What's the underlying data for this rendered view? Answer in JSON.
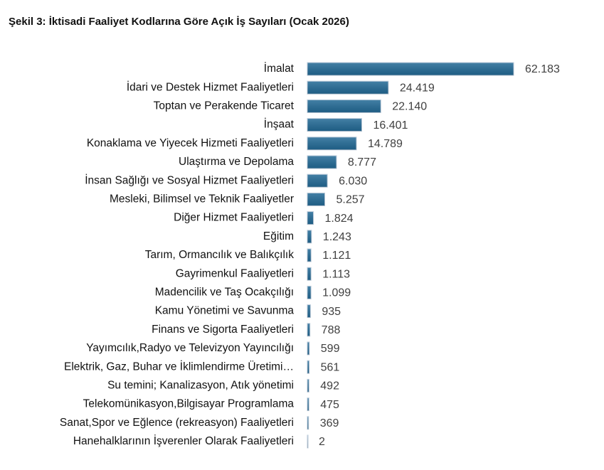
{
  "chart_data": {
    "type": "hbar",
    "title": "Şekil 3: İktisadi Faaliyet Kodlarına Göre Açık İş Sayıları (Ocak 2026)",
    "categories": [
      "İmalat",
      "İdari ve Destek Hizmet Faaliyetleri",
      "Toptan ve Perakende Ticaret",
      "İnşaat",
      "Konaklama ve Yiyecek Hizmeti Faaliyetleri",
      "Ulaştırma ve Depolama",
      "İnsan Sağlığı ve Sosyal Hizmet Faaliyetleri",
      "Mesleki, Bilimsel ve Teknik Faaliyetler",
      "Diğer Hizmet Faaliyetleri",
      "Eğitim",
      "Tarım, Ormancılık ve Balıkçılık",
      "Gayrimenkul Faaliyetleri",
      "Madencilik ve Taş Ocakçılığı",
      "Kamu Yönetimi ve Savunma",
      "Finans ve Sigorta Faaliyetleri",
      "Yayımcılık,Radyo ve Televizyon Yayıncılığı",
      "Elektrik, Gaz, Buhar ve İklimlendirme Üretimi…",
      "Su temini; Kanalizasyon, Atık yönetimi",
      "Telekomünikasyon,Bilgisayar Programlama",
      "Sanat,Spor ve Eğlence (rekreasyon) Faaliyetleri",
      "Hanehalklarının İşverenler Olarak Faaliyetleri"
    ],
    "values": [
      62183,
      24419,
      22140,
      16401,
      14789,
      8777,
      6030,
      5257,
      1824,
      1243,
      1121,
      1113,
      1099,
      935,
      788,
      599,
      561,
      492,
      475,
      369,
      2
    ],
    "value_labels": [
      "62.183",
      "24.419",
      "22.140",
      "16.401",
      "14.789",
      "8.777",
      "6.030",
      "5.257",
      "1.824",
      "1.243",
      "1.121",
      "1.113",
      "1.099",
      "935",
      "788",
      "599",
      "561",
      "492",
      "475",
      "369",
      "2"
    ],
    "color": "#236a96"
  }
}
